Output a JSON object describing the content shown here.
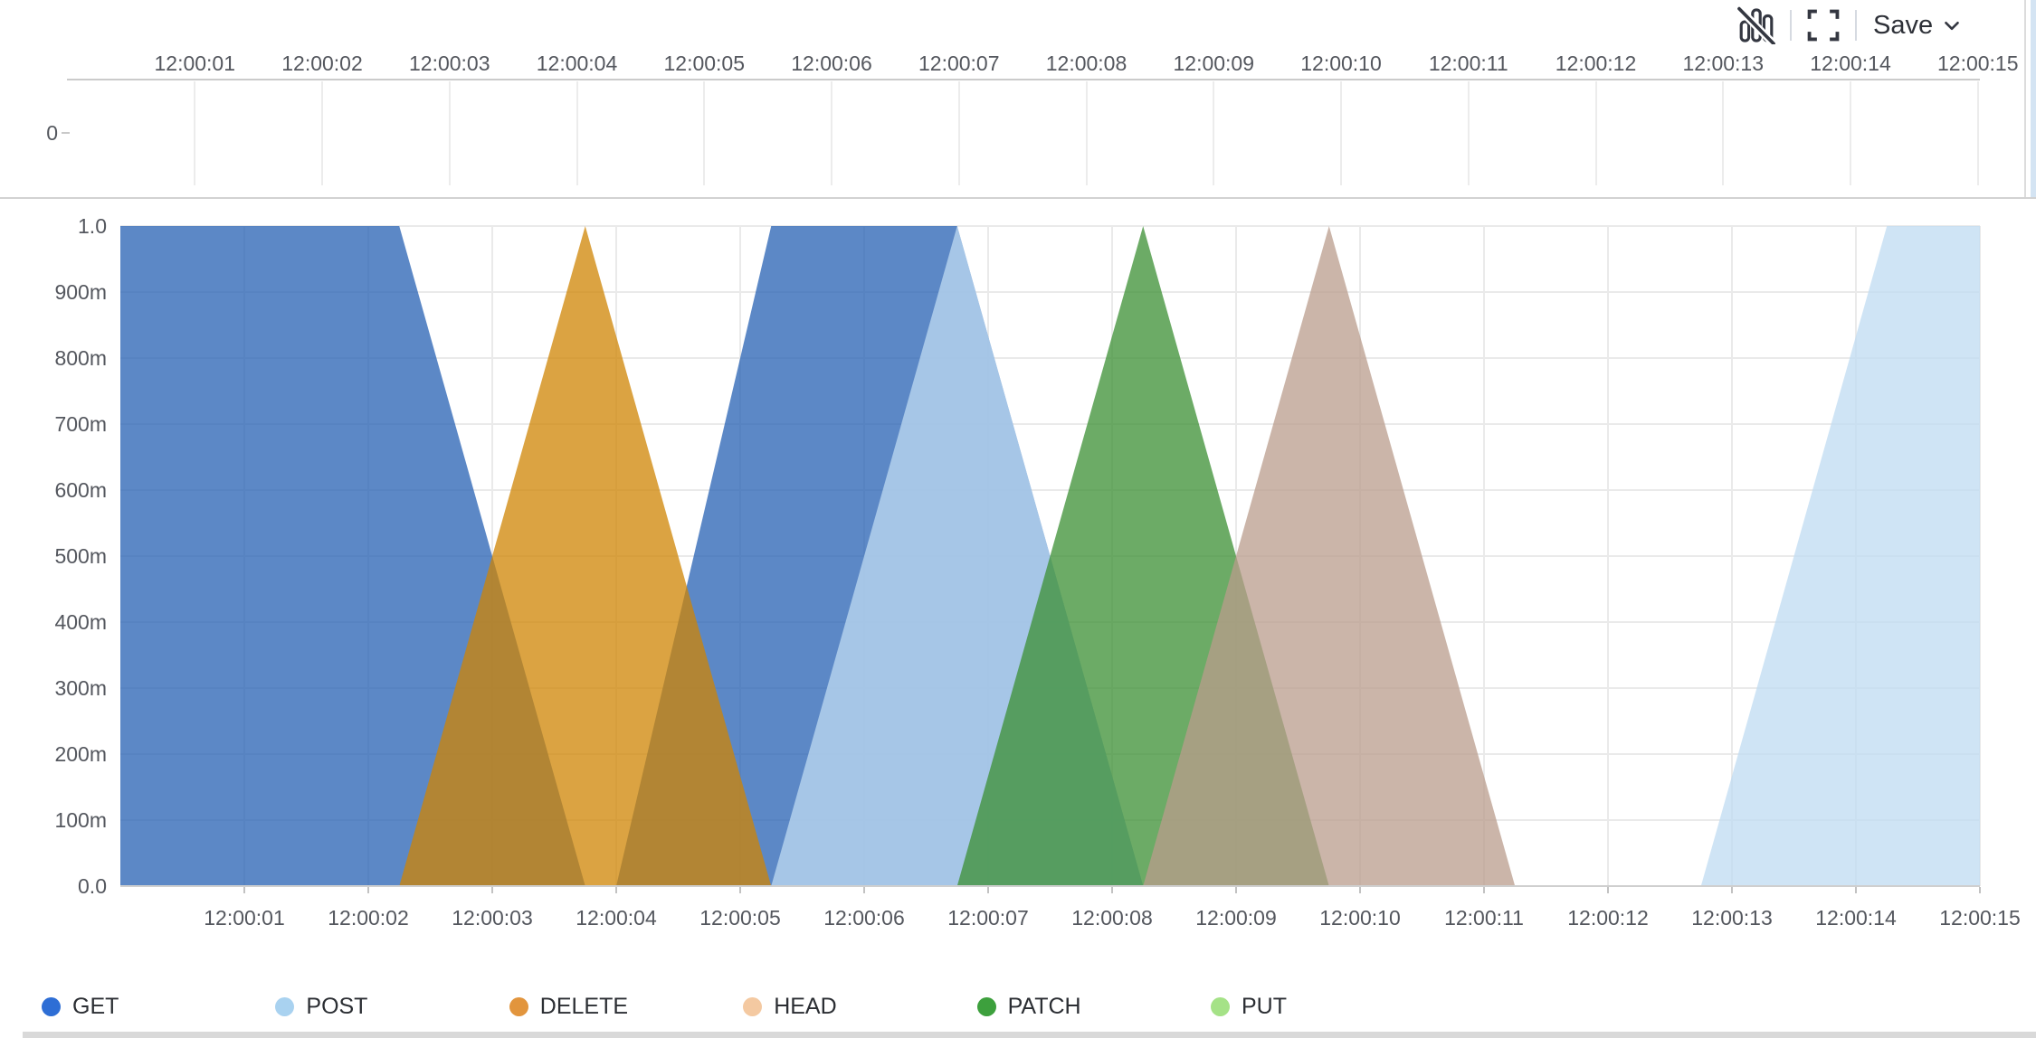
{
  "toolbar": {
    "save_label": "Save",
    "icons": [
      "bar-chart-slash-icon",
      "fullscreen-icon",
      "chevron-down-icon"
    ]
  },
  "mini_chart": {
    "y_tick_label": "0",
    "x_tick_labels": [
      "12:00:01",
      "12:00:02",
      "12:00:03",
      "12:00:04",
      "12:00:05",
      "12:00:06",
      "12:00:07",
      "12:00:08",
      "12:00:09",
      "12:00:10",
      "12:00:11",
      "12:00:12",
      "12:00:13",
      "12:00:14",
      "12:00:15"
    ]
  },
  "main_chart": {
    "y_tick_labels": [
      "1.0",
      "900m",
      "800m",
      "700m",
      "600m",
      "500m",
      "400m",
      "300m",
      "200m",
      "100m",
      "0.0"
    ],
    "x_tick_labels": [
      "12:00:01",
      "12:00:02",
      "12:00:03",
      "12:00:04",
      "12:00:05",
      "12:00:06",
      "12:00:07",
      "12:00:08",
      "12:00:09",
      "12:00:10",
      "12:00:11",
      "12:00:12",
      "12:00:13",
      "12:00:14",
      "12:00:15"
    ]
  },
  "colors": {
    "gridline": "#eaeaea",
    "axis_line": "#cfcfcf",
    "tick_text": "#54575e",
    "legend_text": "#2b2e33",
    "toolbar_icon": "#343741"
  },
  "chart_data": {
    "type": "area",
    "title": "",
    "xlabel": "",
    "ylabel": "",
    "x_axis": {
      "start": "12:00:00",
      "end": "12:00:15",
      "tick_interval_seconds": 1,
      "tick_labels": [
        "12:00:01",
        "12:00:02",
        "12:00:03",
        "12:00:04",
        "12:00:05",
        "12:00:06",
        "12:00:07",
        "12:00:08",
        "12:00:09",
        "12:00:10",
        "12:00:11",
        "12:00:12",
        "12:00:13",
        "12:00:14",
        "12:00:15"
      ]
    },
    "y_axis": {
      "min": 0,
      "max": 1.0,
      "tick_labels": [
        "0.0",
        "100m",
        "200m",
        "300m",
        "400m",
        "500m",
        "600m",
        "700m",
        "800m",
        "900m",
        "1.0"
      ]
    },
    "grid": true,
    "legend_position": "bottom",
    "fill_opacity": 0.75,
    "draw_order": [
      "GET",
      "POST",
      "DELETE",
      "PATCH",
      "HEAD",
      "PUT"
    ],
    "series": [
      {
        "name": "GET",
        "legend_color": "#2e6ed5",
        "area_color": "#2560b3",
        "shapes": [
          [
            [
              0,
              1.0
            ],
            [
              2.25,
              1.0
            ],
            [
              3.75,
              0
            ]
          ],
          [
            [
              4.0,
              0
            ],
            [
              5.25,
              1.0
            ],
            [
              6.75,
              1.0
            ],
            [
              8.25,
              0
            ]
          ]
        ],
        "points_note": "seconds after 12:00:00, value 0-1"
      },
      {
        "name": "POST",
        "legend_color": "#a9d2f0",
        "area_color": "#bfdbf1",
        "shapes": [
          [
            [
              5.25,
              0
            ],
            [
              6.75,
              1.0
            ],
            [
              8.25,
              0
            ]
          ],
          [
            [
              12.75,
              0
            ],
            [
              14.25,
              1.0
            ],
            [
              15,
              1.0
            ]
          ]
        ]
      },
      {
        "name": "DELETE",
        "legend_color": "#e2953d",
        "area_color": "#cf8403",
        "shapes": [
          [
            [
              2.25,
              0
            ],
            [
              3.75,
              1.0
            ],
            [
              5.25,
              0
            ]
          ]
        ]
      },
      {
        "name": "HEAD",
        "legend_color": "#f4c9a1",
        "area_color": "#b99c8c",
        "shapes": [
          [
            [
              8.25,
              0
            ],
            [
              9.75,
              1.0
            ],
            [
              11.25,
              0
            ]
          ]
        ]
      },
      {
        "name": "PATCH",
        "legend_color": "#3da03d",
        "area_color": "#3b8f33",
        "shapes": [
          [
            [
              6.75,
              0
            ],
            [
              8.25,
              1.0
            ],
            [
              9.75,
              0
            ]
          ]
        ]
      },
      {
        "name": "PUT",
        "legend_color": "#a5e287",
        "area_color": "#a5e287",
        "shapes": []
      }
    ]
  }
}
